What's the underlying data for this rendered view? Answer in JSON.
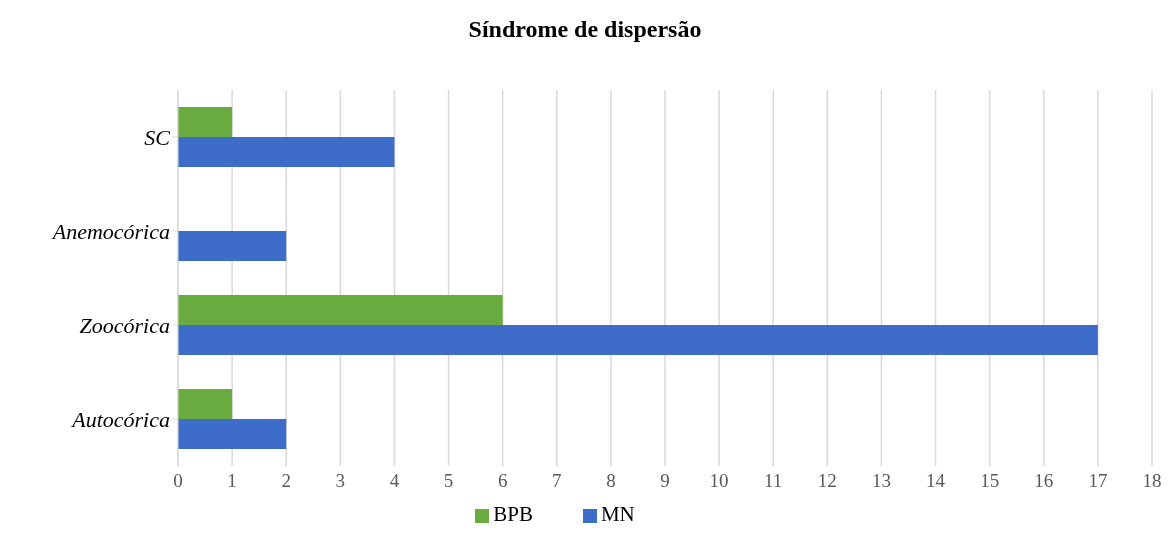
{
  "chart_data": {
    "type": "bar",
    "orientation": "horizontal",
    "title": "Síndrome de dispersão",
    "categories": [
      "SC",
      "Anemocórica",
      "Zoocórica",
      "Autocórica"
    ],
    "series": [
      {
        "name": "BPB",
        "color": "#6aab3f",
        "values": [
          1,
          null,
          6,
          1
        ]
      },
      {
        "name": "MN",
        "color": "#3d6cc9",
        "values": [
          4,
          2,
          17,
          2
        ]
      }
    ],
    "xlim": [
      0,
      18
    ],
    "xticks": [
      0,
      1,
      2,
      3,
      4,
      5,
      6,
      7,
      8,
      9,
      10,
      11,
      12,
      13,
      14,
      15,
      16,
      17,
      18
    ],
    "grid": "x",
    "legend": "bottom"
  }
}
